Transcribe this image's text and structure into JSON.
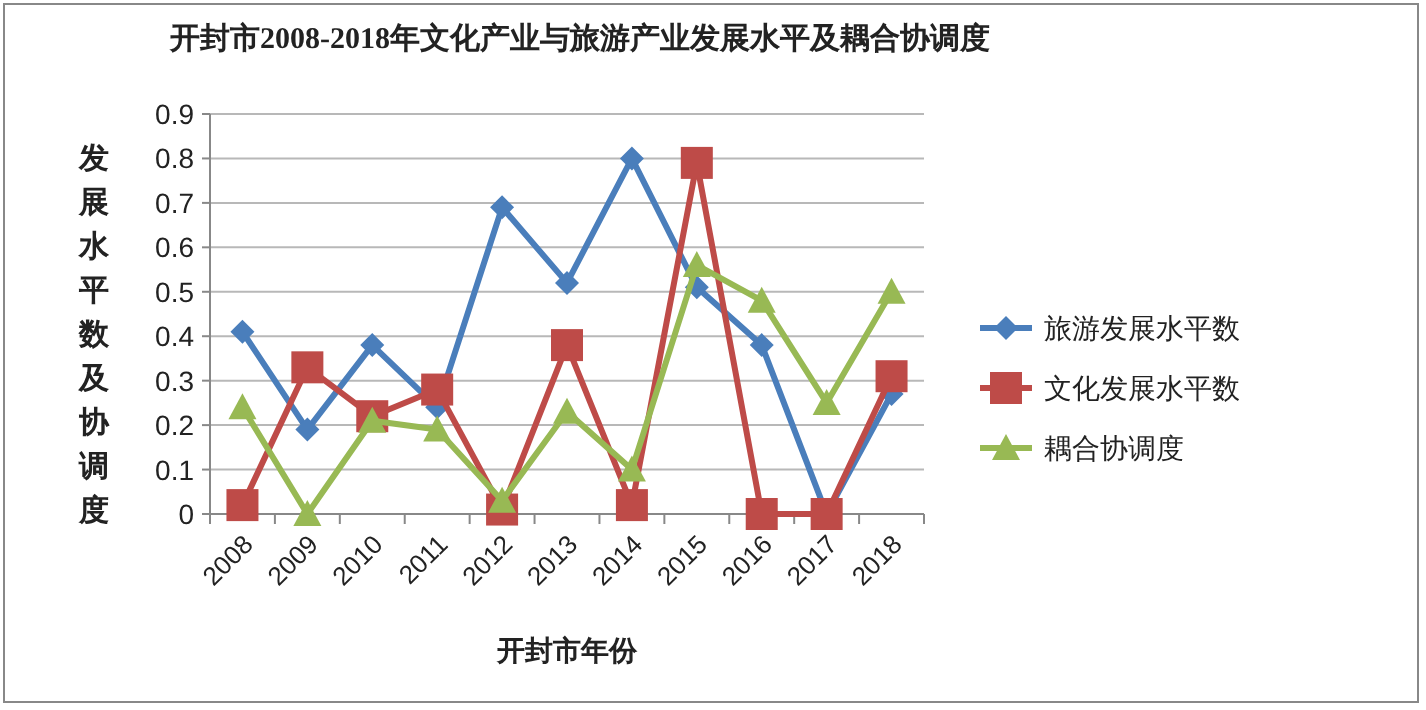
{
  "chart_data": {
    "type": "line",
    "title": "开封市2008-2018年文化产业与旅游产业发展水平及耦合协调度",
    "xlabel": "开封市年份",
    "ylabel": "发展水平数及协调度",
    "categories": [
      "2008",
      "2009",
      "2010",
      "2011",
      "2012",
      "2013",
      "2014",
      "2015",
      "2016",
      "2017",
      "2018"
    ],
    "series": [
      {
        "name": "旅游发展水平数",
        "color": "#4a7ebb",
        "marker": "diamond",
        "values": [
          0.41,
          0.19,
          0.38,
          0.24,
          0.69,
          0.52,
          0.8,
          0.51,
          0.38,
          0.0,
          0.27
        ]
      },
      {
        "name": "文化发展水平数",
        "color": "#be4b48",
        "marker": "square",
        "values": [
          0.02,
          0.33,
          0.22,
          0.28,
          0.01,
          0.38,
          0.02,
          0.79,
          0.0,
          0.0,
          0.31
        ]
      },
      {
        "name": "耦合协调度",
        "color": "#98b954",
        "marker": "triangle",
        "values": [
          0.24,
          0.0,
          0.21,
          0.19,
          0.03,
          0.23,
          0.1,
          0.56,
          0.48,
          0.25,
          0.5
        ]
      }
    ],
    "ylim": [
      0,
      0.9
    ],
    "yticks": [
      0,
      0.1,
      0.2,
      0.3,
      0.4,
      0.5,
      0.6,
      0.7,
      0.8,
      0.9
    ],
    "grid": "y",
    "legend": "right"
  }
}
